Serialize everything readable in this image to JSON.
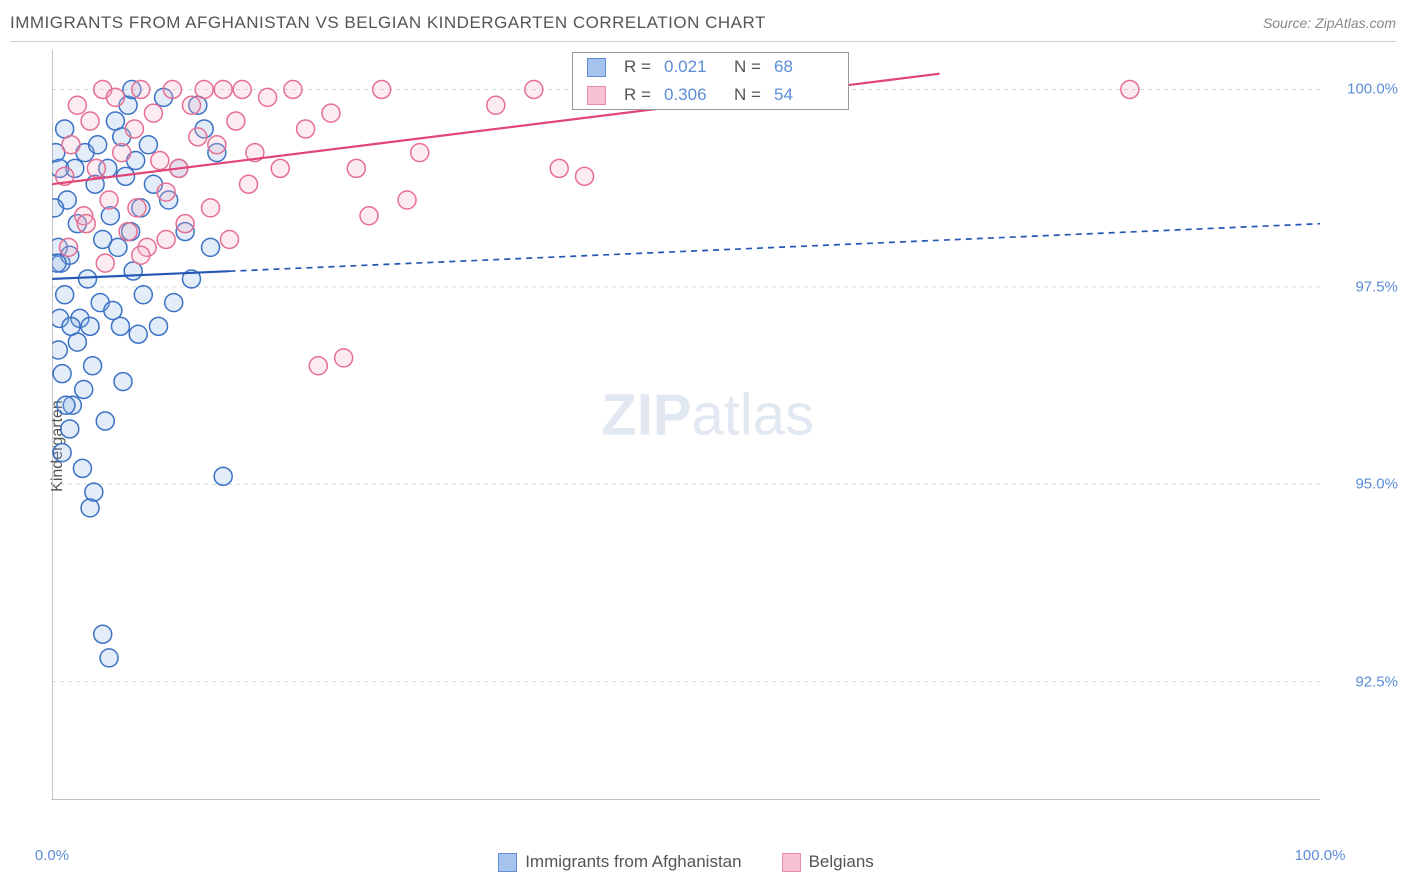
{
  "title": "IMMIGRANTS FROM AFGHANISTAN VS BELGIAN KINDERGARTEN CORRELATION CHART",
  "source": "Source: ZipAtlas.com",
  "yaxis_label": "Kindergarten",
  "watermark_bold": "ZIP",
  "watermark_light": "atlas",
  "chart": {
    "type": "scatter",
    "background_color": "#ffffff",
    "grid_color": "#d7d7d7",
    "grid_dash": "4 4",
    "axis_color": "#888888",
    "tick_color": "#cccccc",
    "tick_len": 10,
    "xlim": [
      0,
      100
    ],
    "ylim": [
      91,
      100.5
    ],
    "ytick_values": [
      92.5,
      95.0,
      97.5,
      100.0
    ],
    "ytick_labels": [
      "92.5%",
      "95.0%",
      "97.5%",
      "100.0%"
    ],
    "xtick_minor": [
      0,
      10,
      20,
      30,
      40,
      50,
      60,
      70,
      80,
      90,
      100
    ],
    "xaxis_end_labels": {
      "min": "0.0%",
      "max": "100.0%"
    },
    "marker_radius": 9,
    "marker_stroke_width": 1.5,
    "marker_fill_opacity": 0.25,
    "trend_stroke_width": 2.2,
    "dash_pattern": "6 5"
  },
  "series": [
    {
      "name": "Immigrants from Afghanistan",
      "color_fill": "#8fb5e8",
      "color_stroke": "#3b72c4",
      "color_line": "#2557b5",
      "R": "0.021",
      "N": "68",
      "trend": {
        "x1": 0,
        "y1": 97.6,
        "x2": 100,
        "y2": 98.3,
        "solid_until_x": 14
      },
      "points": [
        [
          0.3,
          99.2
        ],
        [
          0.5,
          98.0
        ],
        [
          0.6,
          97.1
        ],
        [
          0.7,
          97.8
        ],
        [
          0.8,
          96.4
        ],
        [
          1.0,
          99.5
        ],
        [
          1.2,
          98.6
        ],
        [
          1.4,
          97.9
        ],
        [
          1.6,
          96.0
        ],
        [
          1.8,
          99.0
        ],
        [
          2.0,
          98.3
        ],
        [
          2.2,
          97.1
        ],
        [
          2.4,
          95.2
        ],
        [
          2.6,
          99.2
        ],
        [
          2.8,
          97.6
        ],
        [
          3.0,
          97.0
        ],
        [
          3.2,
          96.5
        ],
        [
          3.4,
          98.8
        ],
        [
          3.6,
          99.3
        ],
        [
          3.8,
          97.3
        ],
        [
          4.0,
          98.1
        ],
        [
          4.2,
          95.8
        ],
        [
          4.4,
          99.0
        ],
        [
          4.6,
          98.4
        ],
        [
          4.8,
          97.2
        ],
        [
          5.0,
          99.6
        ],
        [
          5.2,
          98.0
        ],
        [
          5.4,
          97.0
        ],
        [
          5.6,
          96.3
        ],
        [
          5.8,
          98.9
        ],
        [
          6.0,
          99.8
        ],
        [
          6.2,
          98.2
        ],
        [
          6.4,
          97.7
        ],
        [
          6.6,
          99.1
        ],
        [
          6.8,
          96.9
        ],
        [
          7.0,
          98.5
        ],
        [
          7.2,
          97.4
        ],
        [
          7.6,
          99.3
        ],
        [
          8.0,
          98.8
        ],
        [
          8.4,
          97.0
        ],
        [
          8.8,
          99.9
        ],
        [
          9.2,
          98.6
        ],
        [
          9.6,
          97.3
        ],
        [
          10.0,
          99.0
        ],
        [
          10.5,
          98.2
        ],
        [
          11.0,
          97.6
        ],
        [
          11.5,
          99.8
        ],
        [
          12.0,
          99.5
        ],
        [
          12.5,
          98.0
        ],
        [
          13.0,
          99.2
        ],
        [
          1.0,
          97.4
        ],
        [
          1.5,
          97.0
        ],
        [
          2.0,
          96.8
        ],
        [
          2.5,
          96.2
        ],
        [
          3.0,
          94.7
        ],
        [
          3.3,
          94.9
        ],
        [
          4.0,
          93.1
        ],
        [
          4.5,
          92.8
        ],
        [
          13.5,
          95.1
        ],
        [
          5.5,
          99.4
        ],
        [
          6.3,
          100.0
        ],
        [
          0.5,
          96.7
        ],
        [
          1.1,
          96.0
        ],
        [
          1.4,
          95.7
        ],
        [
          0.8,
          95.4
        ],
        [
          0.4,
          97.8
        ],
        [
          0.2,
          98.5
        ],
        [
          0.6,
          99.0
        ]
      ]
    },
    {
      "name": "Belgians",
      "color_fill": "#f5b4c6",
      "color_stroke": "#e56f94",
      "color_line": "#e24478",
      "R": "0.306",
      "N": "54",
      "trend": {
        "x1": 0,
        "y1": 98.8,
        "x2": 70,
        "y2": 100.2,
        "solid_until_x": 70
      },
      "points": [
        [
          1.0,
          98.9
        ],
        [
          1.5,
          99.3
        ],
        [
          2.0,
          99.8
        ],
        [
          2.5,
          98.4
        ],
        [
          3.0,
          99.6
        ],
        [
          3.5,
          99.0
        ],
        [
          4.0,
          100.0
        ],
        [
          4.5,
          98.6
        ],
        [
          5.0,
          99.9
        ],
        [
          5.5,
          99.2
        ],
        [
          6.0,
          98.2
        ],
        [
          6.5,
          99.5
        ],
        [
          7.0,
          100.0
        ],
        [
          7.5,
          98.0
        ],
        [
          8.0,
          99.7
        ],
        [
          8.5,
          99.1
        ],
        [
          9.0,
          98.7
        ],
        [
          9.5,
          100.0
        ],
        [
          10.0,
          99.0
        ],
        [
          10.5,
          98.3
        ],
        [
          11.0,
          99.8
        ],
        [
          11.5,
          99.4
        ],
        [
          12.0,
          100.0
        ],
        [
          12.5,
          98.5
        ],
        [
          13.0,
          99.3
        ],
        [
          13.5,
          100.0
        ],
        [
          14.0,
          98.1
        ],
        [
          14.5,
          99.6
        ],
        [
          15.0,
          100.0
        ],
        [
          15.5,
          98.8
        ],
        [
          16.0,
          99.2
        ],
        [
          17.0,
          99.9
        ],
        [
          18.0,
          99.0
        ],
        [
          19.0,
          100.0
        ],
        [
          20.0,
          99.5
        ],
        [
          21.0,
          96.5
        ],
        [
          22.0,
          99.7
        ],
        [
          23.0,
          96.6
        ],
        [
          24.0,
          99.0
        ],
        [
          25.0,
          98.4
        ],
        [
          26.0,
          100.0
        ],
        [
          28.0,
          98.6
        ],
        [
          29.0,
          99.2
        ],
        [
          35.0,
          99.8
        ],
        [
          38.0,
          100.0
        ],
        [
          40.0,
          99.0
        ],
        [
          42.0,
          98.9
        ],
        [
          85.0,
          100.0
        ],
        [
          7.0,
          97.9
        ],
        [
          9.0,
          98.1
        ],
        [
          1.3,
          98.0
        ],
        [
          2.7,
          98.3
        ],
        [
          4.2,
          97.8
        ],
        [
          6.7,
          98.5
        ]
      ]
    }
  ],
  "inset_legend_label_R": "R =",
  "inset_legend_label_N": "N ="
}
